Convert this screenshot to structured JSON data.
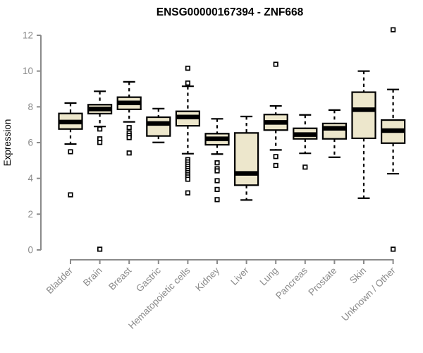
{
  "title": "ENSG00000167394 - ZNF668",
  "colors": {
    "box_fill": "#ede7cc",
    "box_border": "#000000",
    "median": "#000000",
    "whisker": "#000000",
    "outlier_stroke": "#000000",
    "outlier_fill": "#ffffff",
    "axis": "#8a8a8a",
    "axis_text": "#8a8a8a",
    "title_text": "#000000",
    "background": "#ffffff"
  },
  "chart_data": {
    "type": "boxplot",
    "title": "ENSG00000167394 - ZNF668",
    "xlabel": "",
    "ylabel": "Expression",
    "ylim": [
      0,
      12
    ],
    "yticks": [
      0,
      2,
      4,
      6,
      8,
      10,
      12
    ],
    "grid": "off",
    "legend": "none",
    "categories": [
      "Bladder",
      "Brain",
      "Breast",
      "Gastric",
      "Hematopoietic cells",
      "Kidney",
      "Liver",
      "Lung",
      "Pancreas",
      "Prostate",
      "Skin",
      "Unknown / Other"
    ],
    "series": [
      {
        "name": "Bladder",
        "whisker_low": 5.92,
        "q1": 6.76,
        "median": 7.15,
        "q3": 7.63,
        "whisker_high": 8.21,
        "outliers": [
          5.49,
          3.08
        ]
      },
      {
        "name": "Brain",
        "whisker_low": 6.9,
        "q1": 7.62,
        "median": 7.88,
        "q3": 8.12,
        "whisker_high": 8.87,
        "outliers": [
          6.76,
          6.21,
          6.01,
          0.04
        ]
      },
      {
        "name": "Breast",
        "whisker_low": 7.16,
        "q1": 7.86,
        "median": 8.22,
        "q3": 8.54,
        "whisker_high": 9.4,
        "outliers": [
          6.84,
          6.54,
          6.4,
          6.28,
          5.42
        ]
      },
      {
        "name": "Gastric",
        "whisker_low": 6.01,
        "q1": 6.37,
        "median": 7.07,
        "q3": 7.42,
        "whisker_high": 7.9,
        "outliers": []
      },
      {
        "name": "Hematopoietic cells",
        "whisker_low": 5.38,
        "q1": 6.94,
        "median": 7.43,
        "q3": 7.75,
        "whisker_high": 9.15,
        "outliers": [
          10.16,
          9.33,
          5.05,
          4.92,
          4.8,
          4.68,
          4.56,
          4.44,
          4.32,
          4.2,
          4.08,
          3.95,
          3.19
        ]
      },
      {
        "name": "Kidney",
        "whisker_low": 5.36,
        "q1": 5.88,
        "median": 6.21,
        "q3": 6.5,
        "whisker_high": 7.33,
        "outliers": [
          4.87,
          4.54,
          4.42,
          3.87,
          3.38,
          2.81
        ]
      },
      {
        "name": "Liver",
        "whisker_low": 2.79,
        "q1": 3.62,
        "median": 4.28,
        "q3": 6.54,
        "whisker_high": 7.46,
        "outliers": []
      },
      {
        "name": "Lung",
        "whisker_low": 5.59,
        "q1": 6.7,
        "median": 7.13,
        "q3": 7.57,
        "whisker_high": 8.05,
        "outliers": [
          10.38,
          5.22,
          4.72
        ]
      },
      {
        "name": "Pancreas",
        "whisker_low": 5.4,
        "q1": 6.21,
        "median": 6.45,
        "q3": 6.8,
        "whisker_high": 7.55,
        "outliers": [
          4.63
        ]
      },
      {
        "name": "Prostate",
        "whisker_low": 5.18,
        "q1": 6.21,
        "median": 6.8,
        "q3": 7.07,
        "whisker_high": 7.82,
        "outliers": []
      },
      {
        "name": "Skin",
        "whisker_low": 2.89,
        "q1": 6.24,
        "median": 7.84,
        "q3": 8.82,
        "whisker_high": 10.0,
        "outliers": []
      },
      {
        "name": "Unknown / Other",
        "whisker_low": 4.26,
        "q1": 5.97,
        "median": 6.67,
        "q3": 7.26,
        "whisker_high": 8.97,
        "outliers": [
          12.31,
          0.04
        ]
      }
    ]
  }
}
